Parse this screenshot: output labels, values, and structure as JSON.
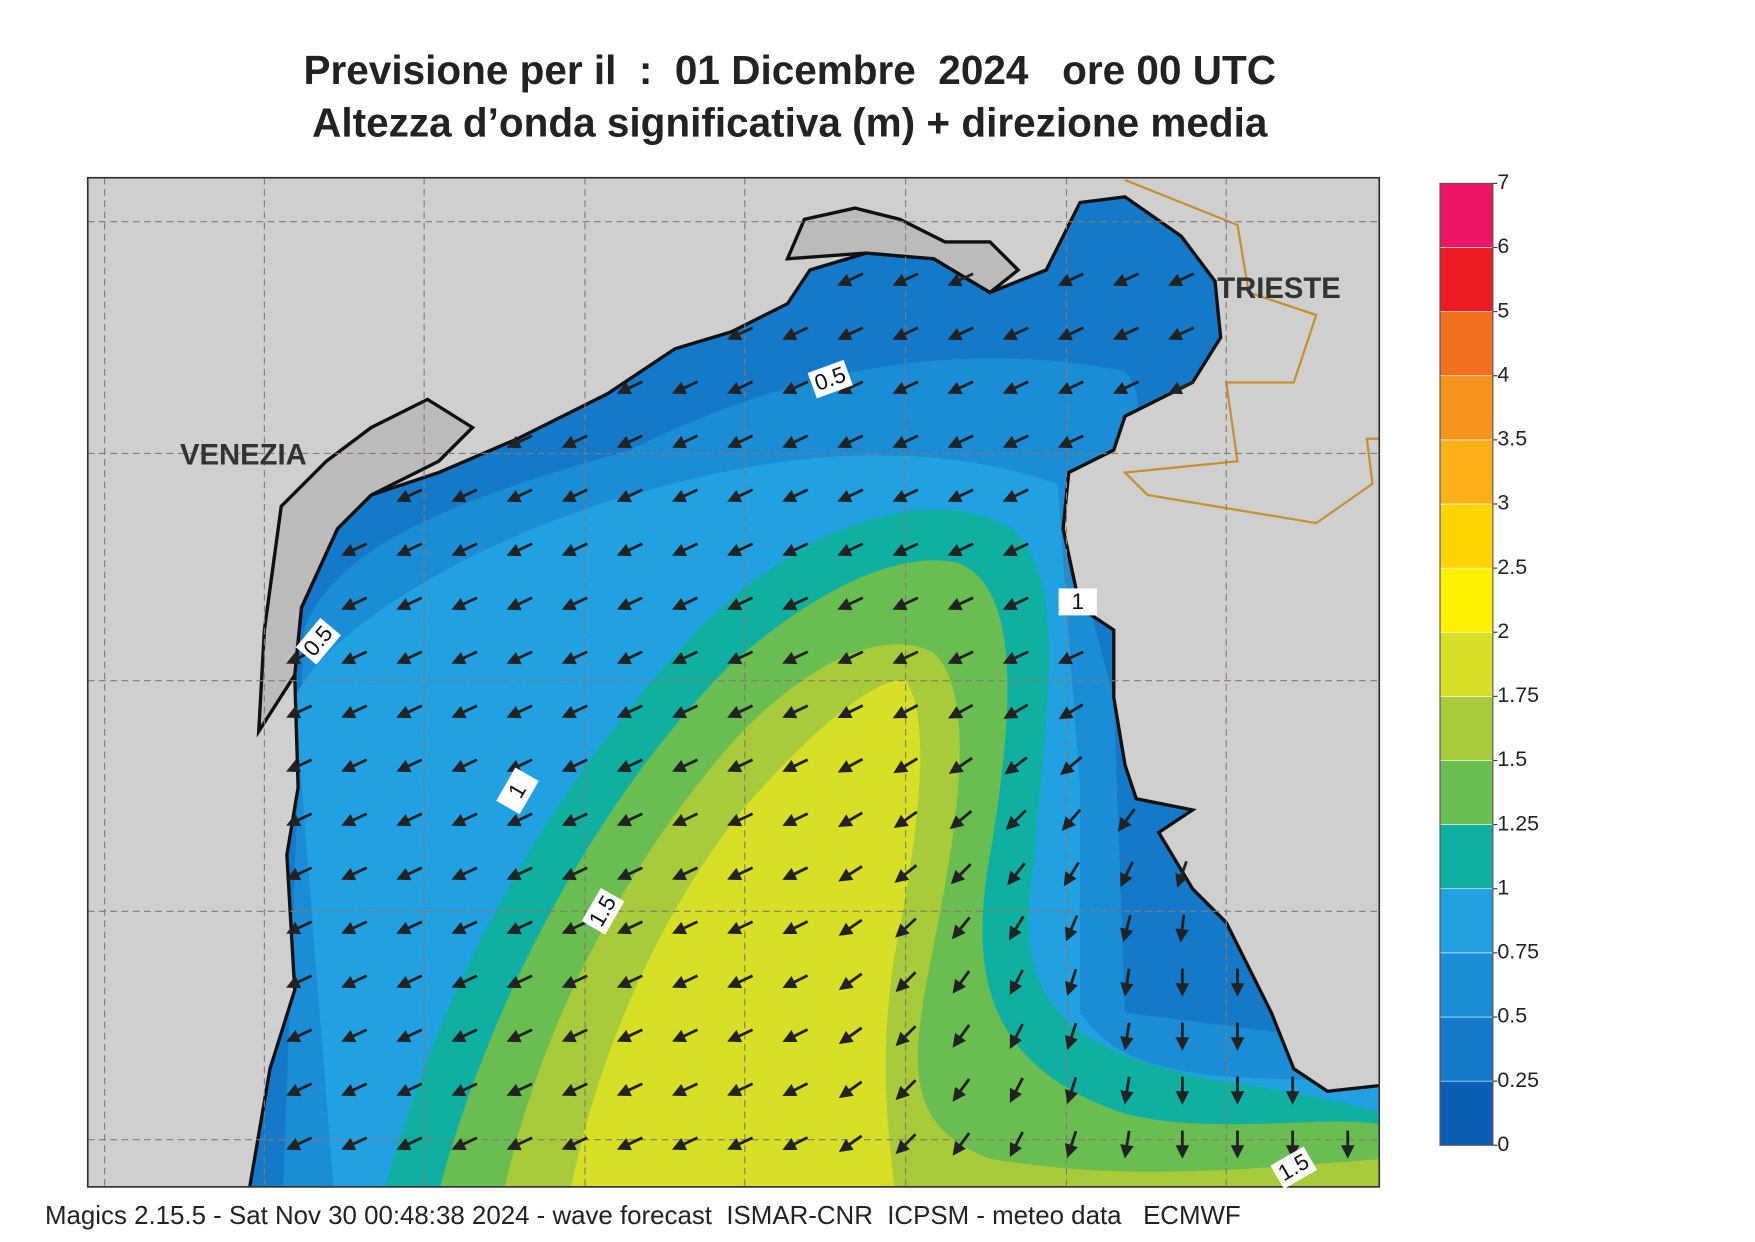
{
  "header": {
    "title": "Previsione per il  :  01 Dicembre  2024   ore 00 UTC",
    "subtitle": "Altezza d’onda significativa (m) + direzione media"
  },
  "colorbar": {
    "levels": [
      0,
      0.25,
      0.5,
      0.75,
      1,
      1.25,
      1.5,
      1.75,
      2,
      2.5,
      3,
      3.5,
      4,
      5,
      6,
      7
    ],
    "colors": [
      "#0a5fb4",
      "#1479c8",
      "#1a8dd6",
      "#22a1e2",
      "#0fb0a2",
      "#6abd50",
      "#a7cb3b",
      "#d7df27",
      "#fff200",
      "#ffd400",
      "#fbb117",
      "#f7941d",
      "#f37021",
      "#ed1c24",
      "#ec1566"
    ]
  },
  "places": [
    "VENEZIA",
    "TRIESTE"
  ],
  "contour_labels": [
    0.5,
    0.5,
    1,
    1,
    1.5,
    1.5
  ],
  "footer": "Magics 2.15.5 - Sat Nov 30 00:48:38 2024 - wave forecast  ISMAR-CNR  ICPSM - meteo data   ECMWF"
}
